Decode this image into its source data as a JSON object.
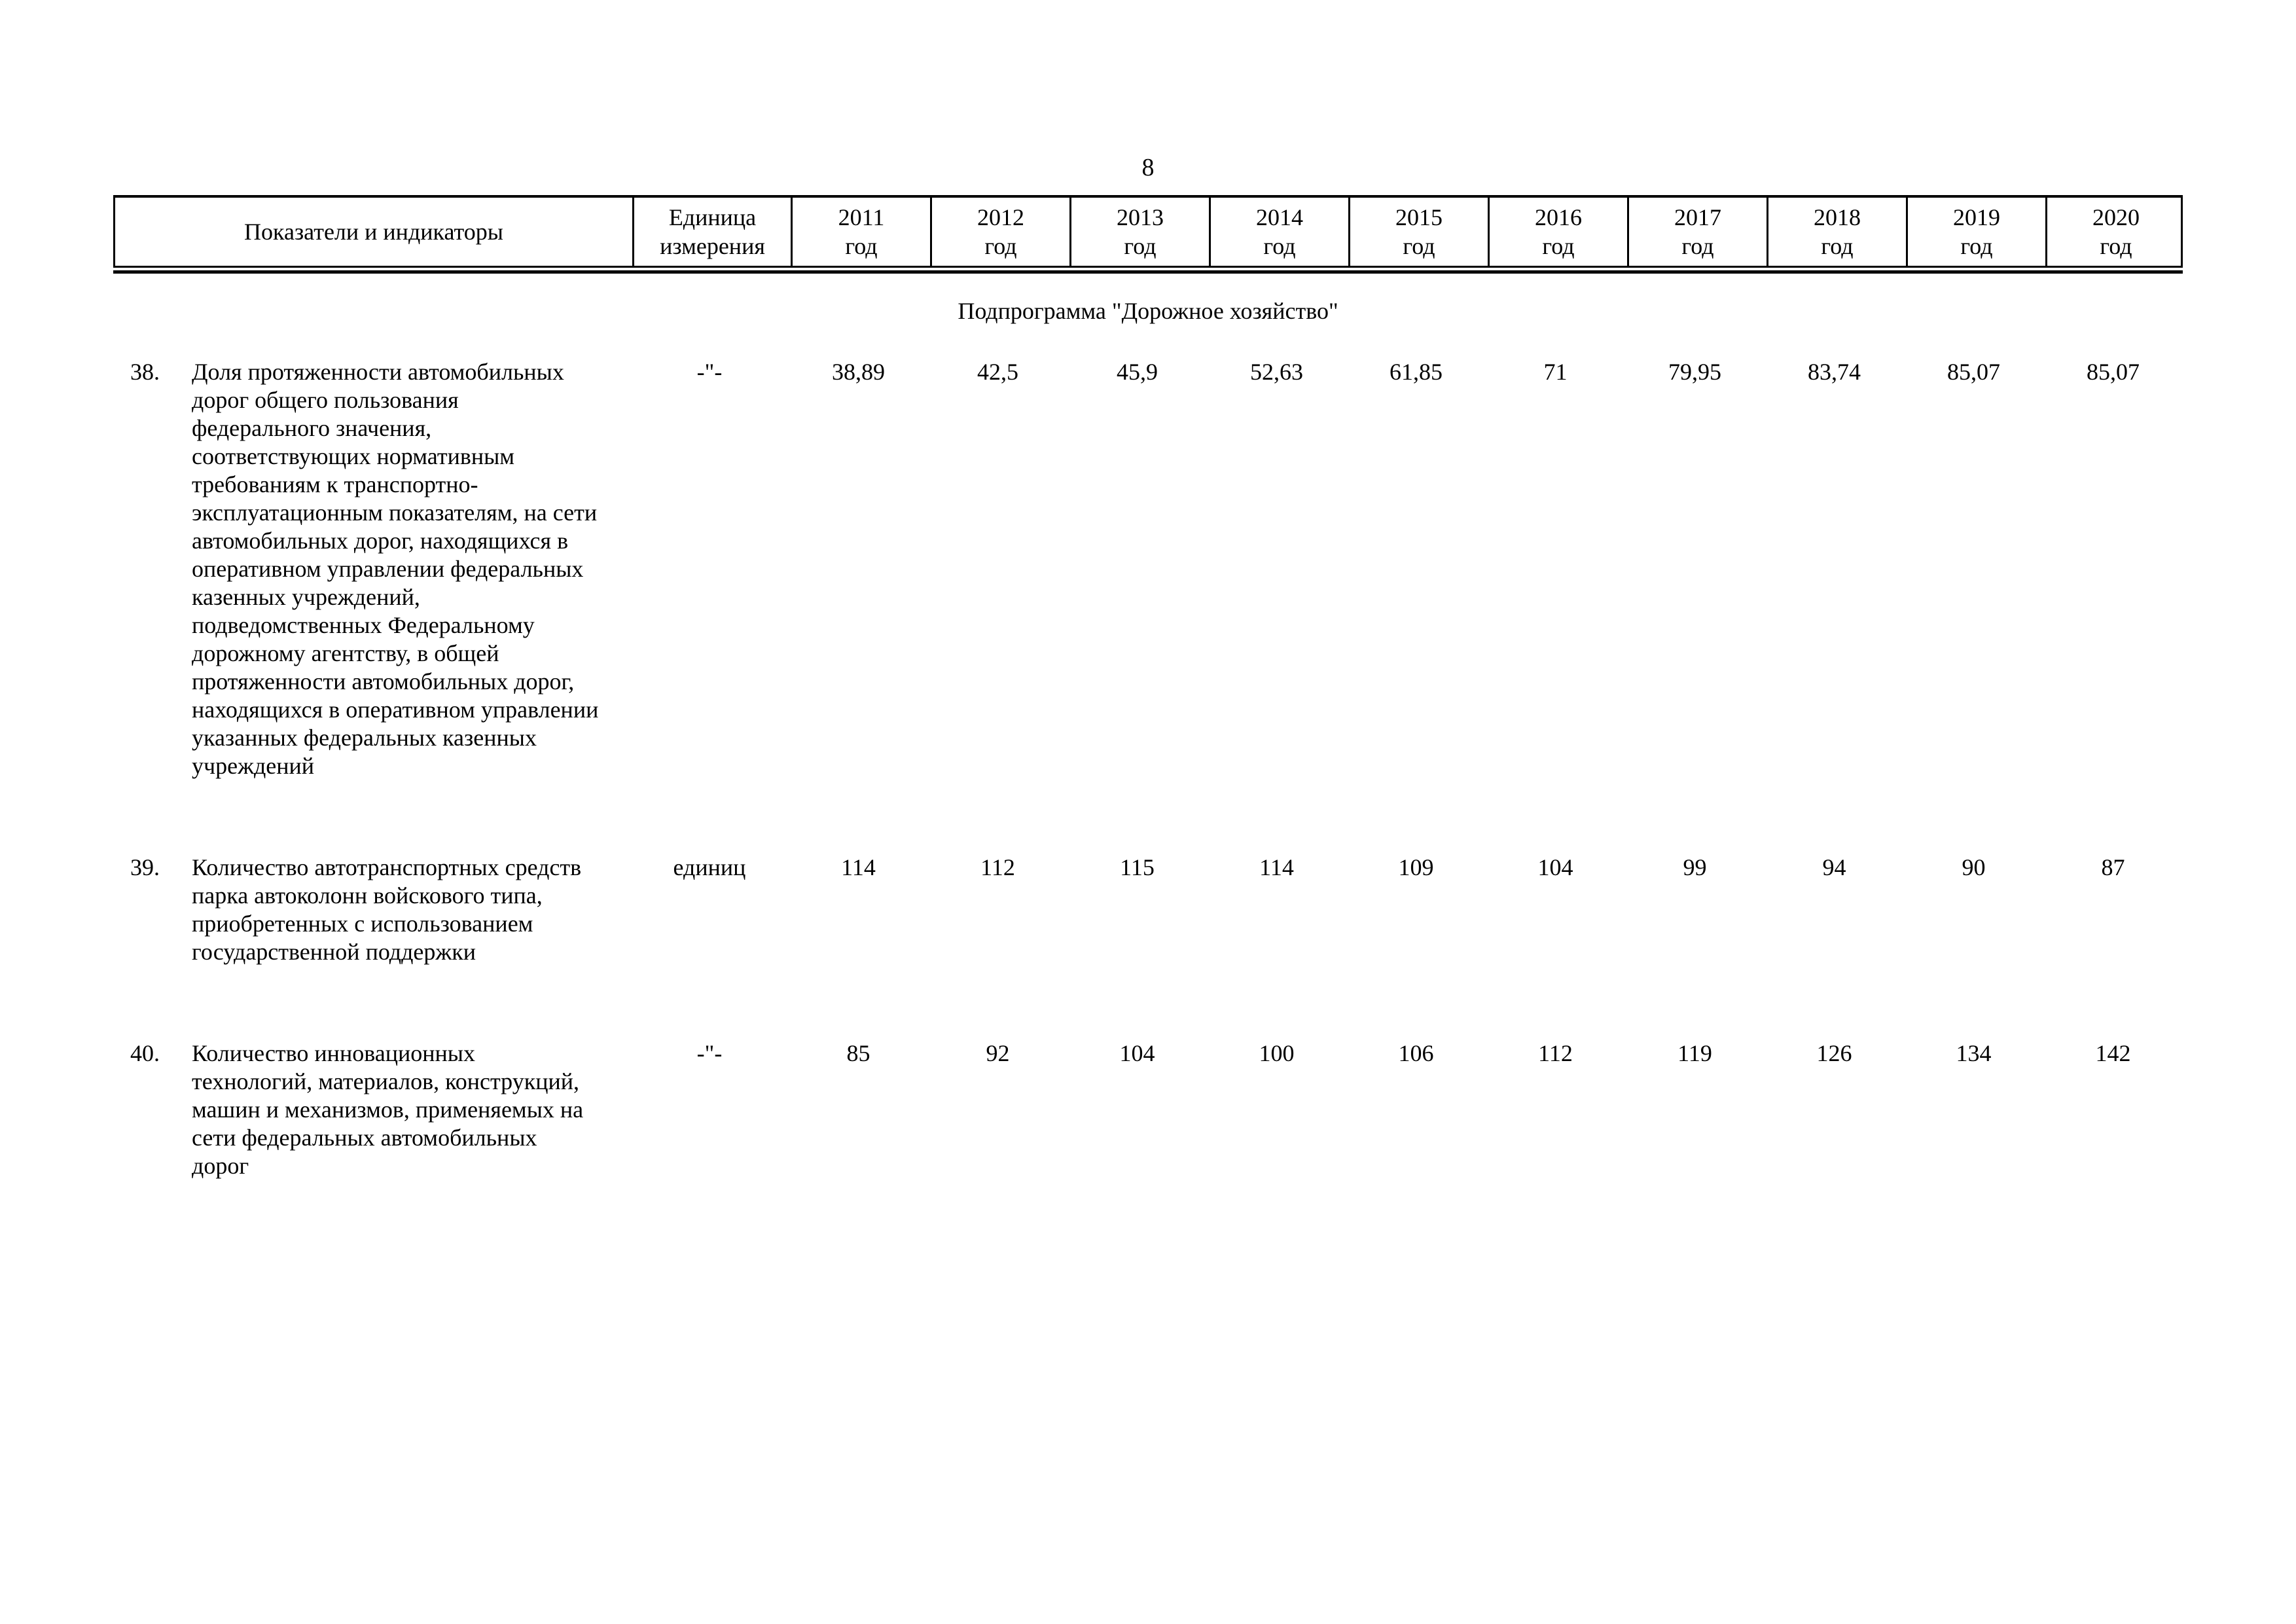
{
  "page": {
    "number": "8",
    "ink_color": "#000000",
    "paper_color": "#ffffff"
  },
  "table": {
    "headers": {
      "indicator": "Показатели и индикаторы",
      "unit_line1": "Единица",
      "unit_line2": "измерения",
      "year_suffix": "год",
      "years": [
        "2011",
        "2012",
        "2013",
        "2014",
        "2015",
        "2016",
        "2017",
        "2018",
        "2019",
        "2020"
      ]
    },
    "section_title": "Подпрограмма \"Дорожное хозяйство\"",
    "rows": [
      {
        "num": "38.",
        "indicator": "Доля протяженности автомобильных дорог общего пользования федерального значения, соответствующих нормативным требованиям к транспортно-эксплуатационным показателям, на сети автомобильных дорог, находящихся в оперативном управлении федеральных казенных учреждений, подведомственных Федеральному дорожному агентству, в общей протяженности автомобильных дорог, находящихся в оперативном управлении указанных федеральных казенных учреждений",
        "unit": "-\"-",
        "values": [
          "38,89",
          "42,5",
          "45,9",
          "52,63",
          "61,85",
          "71",
          "79,95",
          "83,74",
          "85,07",
          "85,07"
        ]
      },
      {
        "num": "39.",
        "indicator": "Количество автотранспортных средств парка автоколонн войскового типа, приобретенных с использованием государственной поддержки",
        "unit": "единиц",
        "values": [
          "114",
          "112",
          "115",
          "114",
          "109",
          "104",
          "99",
          "94",
          "90",
          "87"
        ]
      },
      {
        "num": "40.",
        "indicator": "Количество инновационных технологий, материалов, конструкций, машин и механизмов, применяемых на сети федеральных автомобильных дорог",
        "unit": "-\"-",
        "values": [
          "85",
          "92",
          "104",
          "100",
          "106",
          "112",
          "119",
          "126",
          "134",
          "142"
        ]
      }
    ]
  }
}
